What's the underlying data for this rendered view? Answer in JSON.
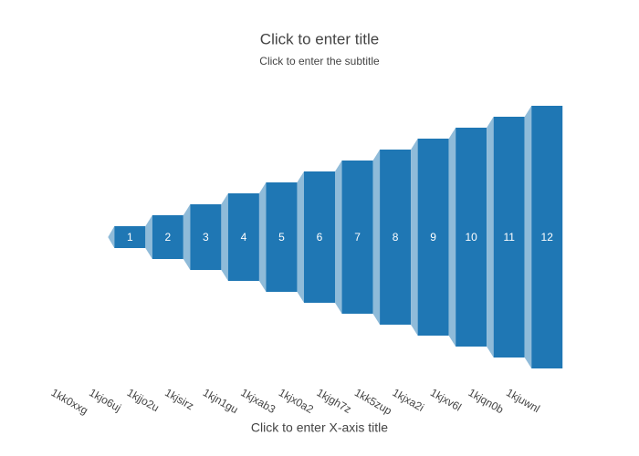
{
  "chart_data": {
    "type": "funnel",
    "title": "Click to enter title",
    "subtitle": "Click to enter the subtitle",
    "x_label": "Click to enter X-axis title",
    "categories": [
      "1kk0xxg",
      "1kjo6uj",
      "1kjjo2u",
      "1kjsirz",
      "1kjn1gu",
      "1kjxab3",
      "1kjx0a2",
      "1kjgh7z",
      "1kk5zup",
      "1kjxa2i",
      "1kjxv6l",
      "1kjqn0b",
      "1kjuwnl"
    ],
    "values": [
      null,
      1,
      2,
      3,
      4,
      5,
      6,
      7,
      8,
      9,
      10,
      11,
      12
    ],
    "color": "#1f77b4",
    "connector_color": "#8fbbd9"
  }
}
